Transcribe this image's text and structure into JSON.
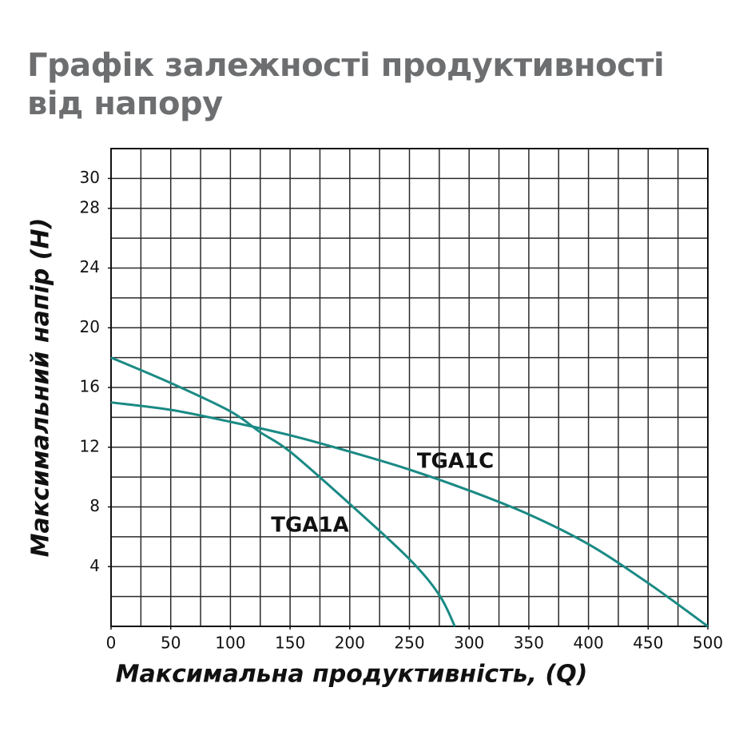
{
  "chart_data": {
    "type": "line",
    "title": "Графік залежності продуктивності від напору",
    "x_label": "Максимальна продуктивність, (Q)",
    "y_label": "Максимальний напір (H)",
    "xlim": [
      0,
      500
    ],
    "ylim": [
      0,
      32
    ],
    "xticks": [
      0,
      50,
      100,
      150,
      200,
      250,
      300,
      350,
      400,
      450,
      500
    ],
    "yticks": [
      4,
      8,
      12,
      16,
      20,
      24,
      28,
      30
    ],
    "grid": true,
    "xgrid_step": 25,
    "ygrid_step": 2,
    "series": [
      {
        "name": "TGA1A",
        "color": "#1a8a84",
        "x": [
          0,
          50,
          100,
          125,
          150,
          200,
          250,
          275,
          288
        ],
        "values": [
          18,
          16.3,
          14.4,
          13,
          11.7,
          8.2,
          4.5,
          2.1,
          0
        ]
      },
      {
        "name": "TGA1C",
        "color": "#1a8a84",
        "x": [
          0,
          50,
          100,
          150,
          200,
          250,
          300,
          350,
          400,
          450,
          500
        ],
        "values": [
          15,
          14.5,
          13.7,
          12.8,
          11.7,
          10.5,
          9.1,
          7.5,
          5.5,
          2.9,
          0
        ]
      }
    ]
  }
}
